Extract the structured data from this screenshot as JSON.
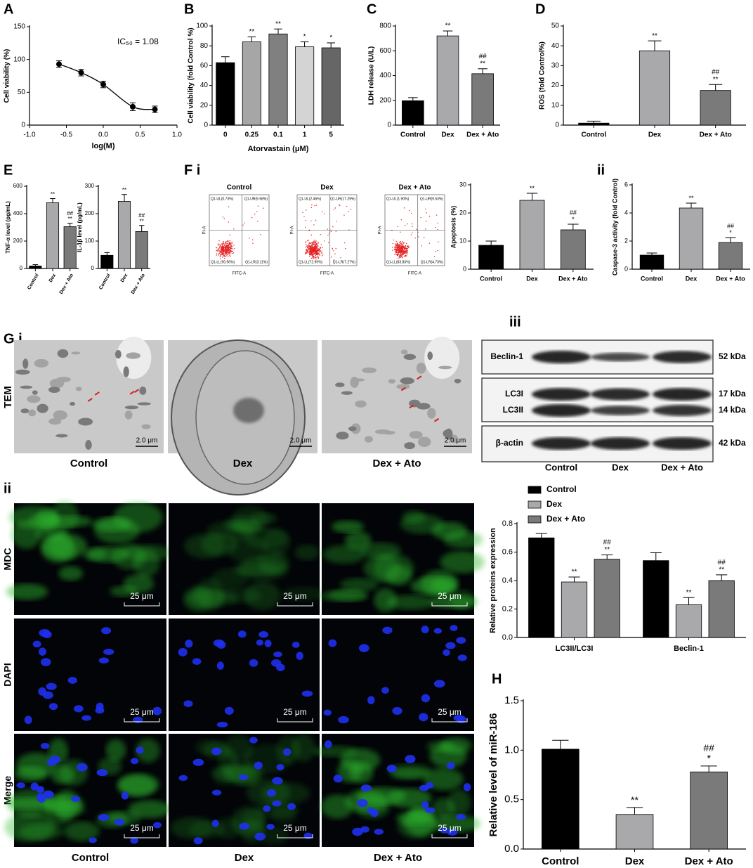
{
  "chart_data": [
    {
      "type": "line",
      "panel": "A",
      "x": [
        -0.6,
        -0.3,
        0,
        0.4,
        0.7
      ],
      "values": [
        93,
        80,
        62,
        28,
        24
      ],
      "errors": [
        5,
        5,
        5,
        6,
        5
      ],
      "color": "#000000",
      "xlim": [
        -1,
        1
      ],
      "xticks": [
        {
          "value": -1,
          "label": "-1.0"
        },
        {
          "value": -0.5,
          "label": "-0.5"
        },
        {
          "value": 0,
          "label": "0.0"
        },
        {
          "value": 0.5,
          "label": "0.5"
        },
        {
          "value": 1,
          "label": "1.0"
        }
      ],
      "ylim": [
        0,
        150
      ],
      "yticks": [
        0,
        50,
        100,
        150
      ],
      "x_label": "log(M)",
      "y_label": "Cell viability (%)",
      "annotation": "IC₅₀ = 1.08"
    },
    {
      "type": "bar",
      "panel": "B",
      "categories": [
        "0",
        "0.25",
        "0.1",
        "1",
        "5"
      ],
      "values": [
        63,
        84,
        92,
        79,
        78
      ],
      "errors": [
        6,
        5,
        5,
        5,
        5
      ],
      "colors": [
        "#000000",
        "#a6a6a6",
        "#808080",
        "#d4d4d4",
        "#666666"
      ],
      "sig": [
        null,
        [
          "**"
        ],
        [
          "**"
        ],
        [
          "*"
        ],
        [
          "*"
        ]
      ],
      "ylim": [
        0,
        100
      ],
      "yticks": [
        0,
        20,
        40,
        60,
        80,
        100
      ],
      "x_label": "Atorvastain (μM)",
      "y_label": "Cell viability (fold Control %)"
    },
    {
      "type": "bar",
      "panel": "C",
      "categories": [
        "Control",
        "Dex",
        "Dex + Ato"
      ],
      "values": [
        197,
        720,
        415
      ],
      "errors": [
        25,
        40,
        40
      ],
      "colors": [
        "#000000",
        "#a9a9ab",
        "#7a7a7a"
      ],
      "sig": [
        null,
        [
          "**"
        ],
        [
          "##",
          "**"
        ]
      ],
      "ylim": [
        0,
        800
      ],
      "yticks": [
        0,
        200,
        400,
        600,
        800
      ],
      "y_label": "LDH release (U/L)"
    },
    {
      "type": "bar",
      "panel": "D",
      "categories": [
        "Control",
        "Dex",
        "Dex + Ato"
      ],
      "values": [
        1,
        37.5,
        17.5
      ],
      "errors": [
        1,
        5,
        3
      ],
      "colors": [
        "#000000",
        "#a9a9ab",
        "#7a7a7a"
      ],
      "sig": [
        null,
        [
          "**"
        ],
        [
          "##",
          "**"
        ]
      ],
      "ylim": [
        0,
        50
      ],
      "yticks": [
        0,
        10,
        20,
        30,
        40,
        50
      ],
      "y_label": "ROS (fold Control%)"
    },
    {
      "type": "bar",
      "panel": "E",
      "categories": [
        "Control",
        "Dex",
        "Dex + Ato"
      ],
      "values": [
        18,
        480,
        305
      ],
      "errors": [
        10,
        30,
        25
      ],
      "colors": [
        "#000000",
        "#a9a9ab",
        "#7a7a7a"
      ],
      "sig": [
        null,
        [
          "**"
        ],
        [
          "##",
          "**"
        ]
      ],
      "ylim": [
        0,
        600
      ],
      "yticks": [
        0,
        200,
        400,
        600
      ],
      "y_label": "TNF-α level (pg/mL)"
    },
    {
      "type": "bar",
      "categories": [
        "Control",
        "Dex",
        "Dex + Ato"
      ],
      "values": [
        48,
        245,
        135
      ],
      "errors": [
        10,
        25,
        22
      ],
      "colors": [
        "#000000",
        "#a9a9ab",
        "#7a7a7a"
      ],
      "sig": [
        null,
        [
          "**"
        ],
        [
          "##",
          "**"
        ]
      ],
      "ylim": [
        0,
        300
      ],
      "yticks": [
        0,
        100,
        200,
        300
      ],
      "y_label": "IL-1β level (pg/mL)"
    },
    {
      "type": "bar",
      "categories": [
        "Control",
        "Dex",
        "Dex + Ato"
      ],
      "values": [
        8.5,
        24.5,
        14
      ],
      "errors": [
        1.5,
        2.5,
        2
      ],
      "colors": [
        "#000000",
        "#a9a9ab",
        "#7a7a7a"
      ],
      "sig": [
        null,
        [
          "**"
        ],
        [
          "##",
          "*"
        ]
      ],
      "ylim": [
        0,
        30
      ],
      "yticks": [
        0,
        10,
        20,
        30
      ],
      "y_label": "Apoptosis (%)"
    },
    {
      "type": "bar",
      "panel": "ii",
      "categories": [
        "Control",
        "Dex",
        "Dex + Ato"
      ],
      "values": [
        1,
        4.35,
        1.9
      ],
      "errors": [
        0.15,
        0.35,
        0.35
      ],
      "colors": [
        "#000000",
        "#a9a9ab",
        "#7a7a7a"
      ],
      "sig": [
        null,
        [
          "**"
        ],
        [
          "##",
          "*"
        ]
      ],
      "ylim": [
        0,
        6
      ],
      "yticks": [
        0,
        2,
        4,
        6
      ],
      "y_label": "Caspase-3 activity (fold Control)"
    },
    {
      "type": "bar",
      "categories": [
        "LC3II/LC3I",
        "Beclin-1"
      ],
      "series": [
        {
          "name": "Control",
          "color": "#000000",
          "values": [
            0.7,
            0.54
          ],
          "errors": [
            0.03,
            0.055
          ],
          "sig": [
            null,
            null
          ]
        },
        {
          "name": "Dex",
          "color": "#a9a9ab",
          "values": [
            0.39,
            0.23
          ],
          "errors": [
            0.035,
            0.05
          ],
          "sig": [
            [
              "**"
            ],
            [
              "**"
            ]
          ]
        },
        {
          "name": "Dex + Ato",
          "color": "#7a7a7a",
          "values": [
            0.55,
            0.4
          ],
          "errors": [
            0.03,
            0.04
          ],
          "sig": [
            [
              "##",
              "**"
            ],
            [
              "##",
              "**"
            ]
          ]
        }
      ],
      "ylim": [
        0,
        0.8
      ],
      "yticks": [
        {
          "value": 0,
          "label": "0.0"
        },
        {
          "value": 0.2,
          "label": "0.2"
        },
        {
          "value": 0.4,
          "label": "0.4"
        },
        {
          "value": 0.6,
          "label": "0.6"
        },
        {
          "value": 0.8,
          "label": "0.8"
        }
      ],
      "y_label": "Relative proteins expression"
    },
    {
      "type": "bar",
      "panel": "H",
      "categories": [
        "Control",
        "Dex",
        "Dex + Ato"
      ],
      "values": [
        1.01,
        0.35,
        0.78
      ],
      "errors": [
        0.09,
        0.07,
        0.06
      ],
      "colors": [
        "#000000",
        "#a9a9ab",
        "#7a7a7a"
      ],
      "sig": [
        null,
        [
          "**"
        ],
        [
          "##",
          "*"
        ]
      ],
      "ylim": [
        0,
        1.5
      ],
      "yticks": [
        {
          "value": 0,
          "label": "0.0"
        },
        {
          "value": 0.5,
          "label": "0.5"
        },
        {
          "value": 1,
          "label": "1.0"
        },
        {
          "value": 1.5,
          "label": "1.5"
        }
      ],
      "y_label": "Relative level of miR-186"
    }
  ],
  "flow": {
    "panel": "F i",
    "plots": [
      {
        "title": "Control",
        "quadrants": [
          "Q1-UL(0.73%)",
          "Q1-UR(5.58%)",
          "Q1-LL(90.56%)",
          "Q1-LR(3.11%)"
        ],
        "x_label": "FITC-A",
        "y_label": "PI-A"
      },
      {
        "title": "Dex",
        "quadrants": [
          "Q1-UL(2.46%)",
          "Q1-UR(17.29%)",
          "Q1-LL(72.99%)",
          "Q1-LR(7.27%)"
        ],
        "x_label": "FITC-A",
        "y_label": "PI-A"
      },
      {
        "title": "Dex + Ato",
        "quadrants": [
          "Q1-UL(1.90%)",
          "Q1-UR(9.53%)",
          "Q1-LL(83.83%)",
          "Q1-LR(4.73%)"
        ],
        "x_label": "FITC-A",
        "y_label": "PI-A"
      }
    ]
  },
  "tem": {
    "panel": "G i",
    "row_label": "TEM",
    "images": [
      {
        "label": "Control",
        "scale": "2.0 μm"
      },
      {
        "label": "Dex",
        "scale": "2.0 μm"
      },
      {
        "label": "Dex + Ato",
        "scale": "2.0 μm"
      }
    ]
  },
  "western": {
    "panel": "iii",
    "rows": [
      {
        "label": "Beclin-1",
        "kda": "52 kDa"
      },
      {
        "label": "LC3I",
        "kda": "17 kDa"
      },
      {
        "label": "LC3II",
        "kda": "14 kDa"
      },
      {
        "label": "β-actin",
        "kda": "42 kDa"
      }
    ],
    "columns": [
      "Control",
      "Dex",
      "Dex + Ato"
    ]
  },
  "fluorescence": {
    "panel": "ii",
    "rows": [
      {
        "label": "MDC",
        "scales": [
          "25 μm",
          "25 μm",
          "25 μm"
        ]
      },
      {
        "label": "DAPI",
        "scales": [
          "25 μm",
          "25 μm",
          "25 μm"
        ]
      },
      {
        "label": "Merge",
        "scales": [
          "25 μm",
          "25 μm",
          "25 μm"
        ]
      }
    ],
    "columns": [
      "Control",
      "Dex",
      "Dex + Ato"
    ]
  }
}
